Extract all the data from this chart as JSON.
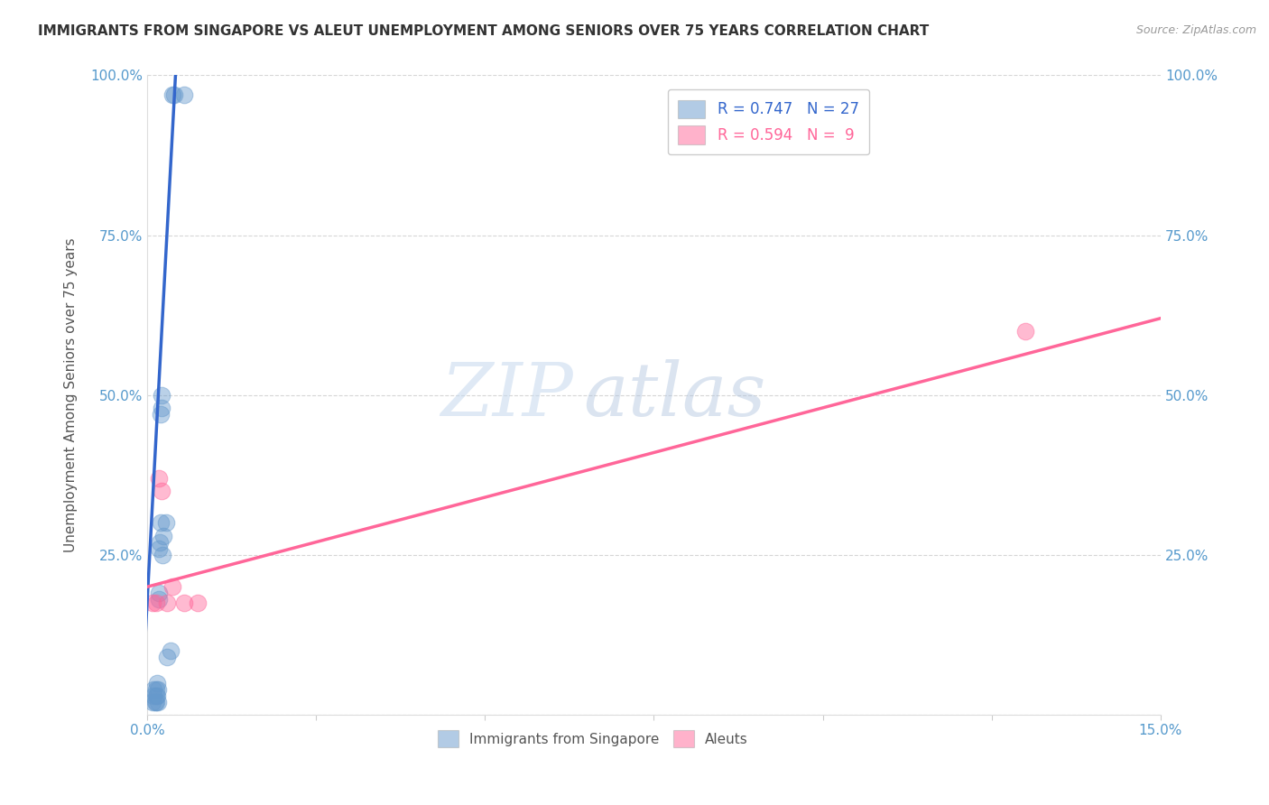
{
  "title": "IMMIGRANTS FROM SINGAPORE VS ALEUT UNEMPLOYMENT AMONG SENIORS OVER 75 YEARS CORRELATION CHART",
  "source": "Source: ZipAtlas.com",
  "xlabel": "",
  "ylabel": "Unemployment Among Seniors over 75 years",
  "legend_label1": "Immigrants from Singapore",
  "legend_label2": "Aleuts",
  "r1": 0.747,
  "n1": 27,
  "r2": 0.594,
  "n2": 9,
  "xlim": [
    0,
    0.15
  ],
  "ylim": [
    0,
    1.0
  ],
  "xticks": [
    0.0,
    0.025,
    0.05,
    0.075,
    0.1,
    0.125,
    0.15
  ],
  "yticks": [
    0.0,
    0.25,
    0.5,
    0.75,
    1.0
  ],
  "color_blue": "#6699CC",
  "color_pink": "#FF6699",
  "color_line_blue": "#3366CC",
  "color_line_pink": "#FF6699",
  "watermark_zip": "ZIP",
  "watermark_atlas": "atlas",
  "blue_x": [
    0.0008,
    0.001,
    0.001,
    0.0012,
    0.0013,
    0.0013,
    0.0014,
    0.0015,
    0.0015,
    0.0016,
    0.0016,
    0.0017,
    0.0018,
    0.0018,
    0.0019,
    0.002,
    0.002,
    0.0021,
    0.0022,
    0.0023,
    0.0024,
    0.0028,
    0.003,
    0.0035,
    0.0038,
    0.004,
    0.0055
  ],
  "blue_y": [
    0.02,
    0.03,
    0.04,
    0.02,
    0.03,
    0.04,
    0.02,
    0.03,
    0.05,
    0.02,
    0.04,
    0.18,
    0.19,
    0.26,
    0.27,
    0.3,
    0.47,
    0.48,
    0.5,
    0.25,
    0.28,
    0.3,
    0.09,
    0.1,
    0.97,
    0.97,
    0.97
  ],
  "pink_x": [
    0.0008,
    0.0014,
    0.0018,
    0.0022,
    0.003,
    0.0038,
    0.0055,
    0.0075,
    0.13
  ],
  "pink_y": [
    0.175,
    0.175,
    0.37,
    0.35,
    0.175,
    0.2,
    0.175,
    0.175,
    0.6
  ],
  "blue_line_x0": 0.0,
  "blue_line_y0": 0.175,
  "blue_line_x1": 0.0042,
  "blue_line_y1": 1.0,
  "pink_line_x0": 0.0,
  "pink_line_y0": 0.2,
  "pink_line_x1": 0.15,
  "pink_line_y1": 0.62
}
